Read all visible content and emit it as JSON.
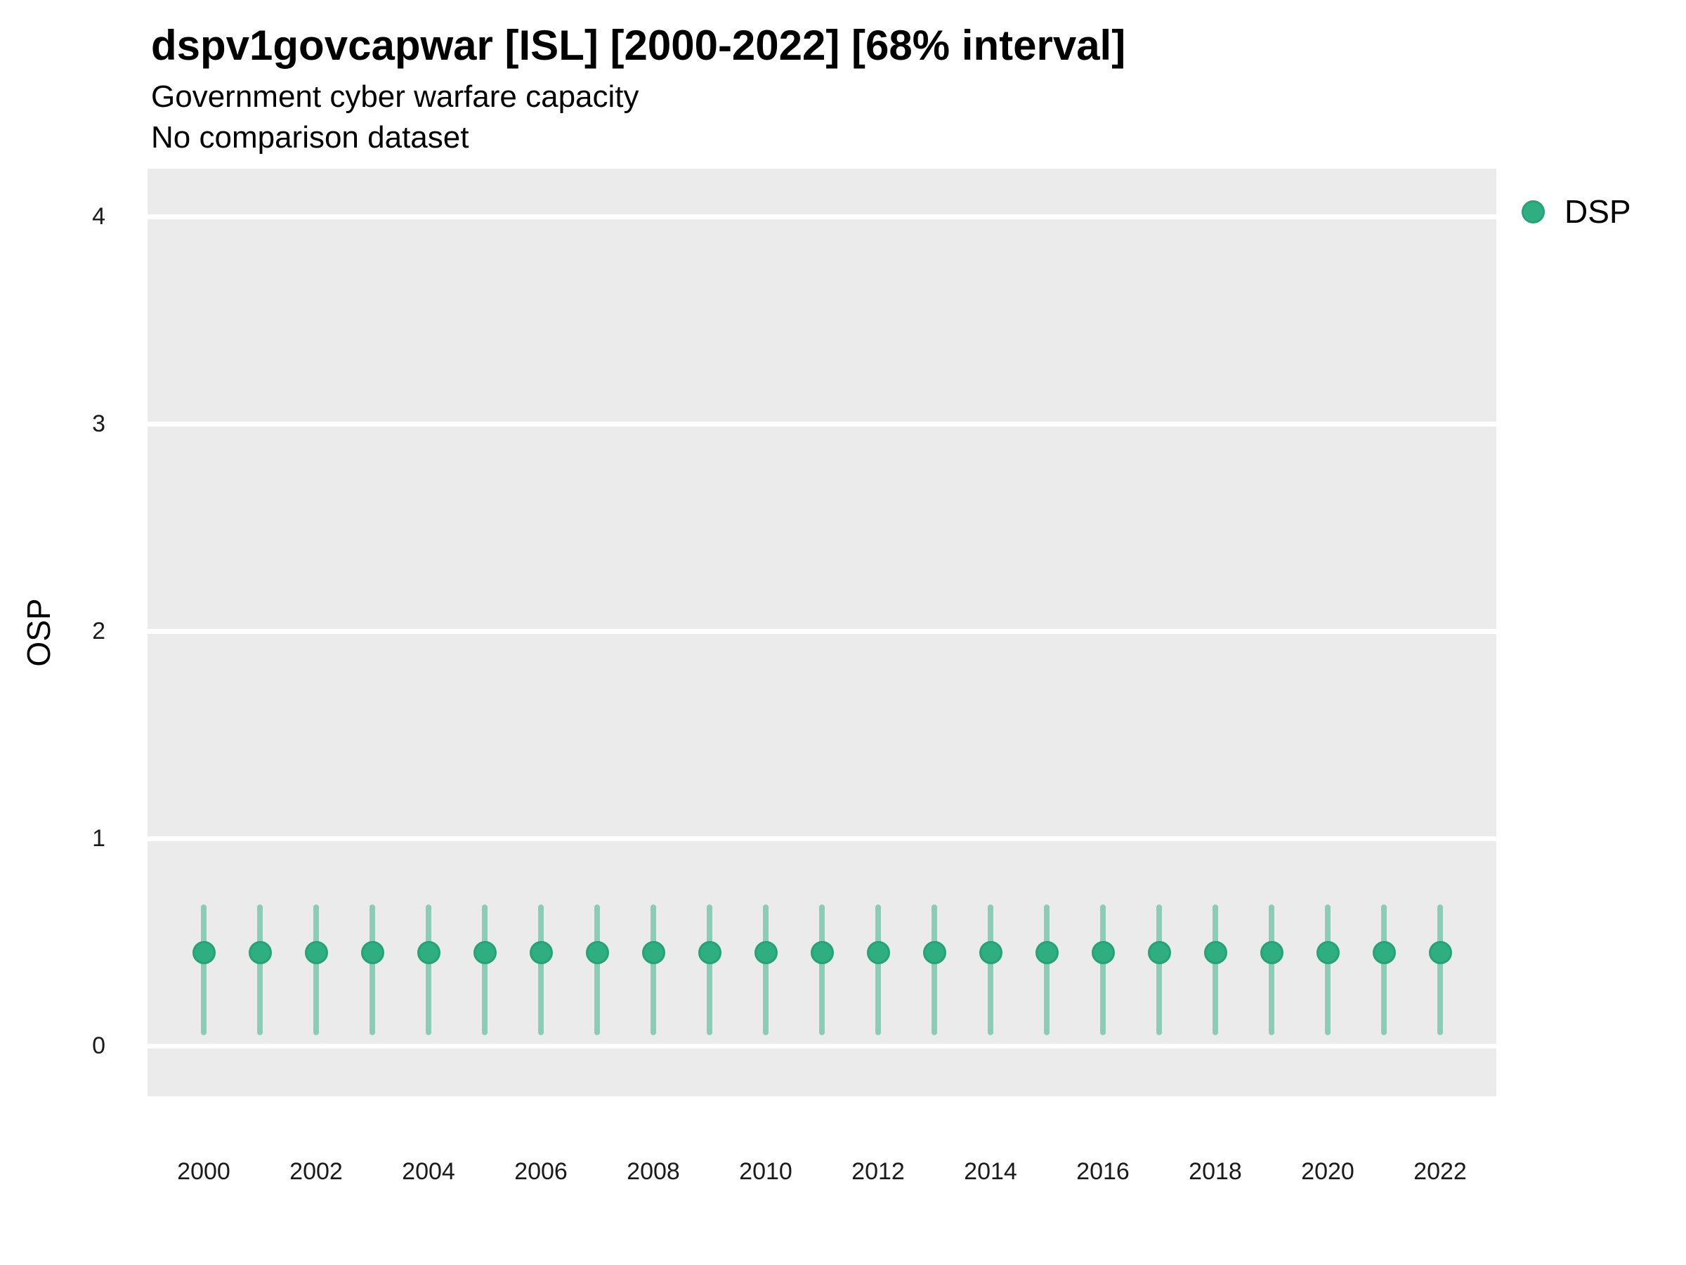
{
  "header": {
    "title": "dspv1govcapwar [ISL] [2000-2022] [68% interval]",
    "subtitle": "Government cyber warfare capacity",
    "note": "No comparison dataset"
  },
  "y_axis": {
    "title": "OSP"
  },
  "legend": {
    "label": "DSP"
  },
  "colors": {
    "point_fill": "#2FAE82",
    "point_stroke": "#25A276",
    "errorbar": "rgba(46,172,128,0.5)",
    "panel_bg": "#EBEBEB",
    "gridline": "#FFFFFF",
    "tick_text": "#1a1a1a",
    "title_text": "#000000"
  },
  "chart_data": {
    "type": "scatter",
    "title": "dspv1govcapwar [ISL] [2000-2022] [68% interval]",
    "subtitle": "Government cyber warfare capacity",
    "note": "No comparison dataset",
    "xlabel": "",
    "ylabel": "OSP",
    "interval": "68%",
    "legend_position": "right",
    "grid": "horizontal-major-only",
    "x": [
      2000,
      2001,
      2002,
      2003,
      2004,
      2005,
      2006,
      2007,
      2008,
      2009,
      2010,
      2011,
      2012,
      2013,
      2014,
      2015,
      2016,
      2017,
      2018,
      2019,
      2020,
      2021,
      2022
    ],
    "series": [
      {
        "name": "DSP",
        "values": [
          0.45,
          0.45,
          0.45,
          0.45,
          0.45,
          0.45,
          0.45,
          0.45,
          0.45,
          0.45,
          0.45,
          0.45,
          0.45,
          0.45,
          0.45,
          0.45,
          0.45,
          0.45,
          0.45,
          0.45,
          0.45,
          0.45,
          0.45
        ],
        "interval_low": [
          0.05,
          0.05,
          0.05,
          0.05,
          0.05,
          0.05,
          0.05,
          0.05,
          0.05,
          0.05,
          0.05,
          0.05,
          0.05,
          0.05,
          0.05,
          0.05,
          0.05,
          0.05,
          0.05,
          0.05,
          0.05,
          0.05,
          0.05
        ],
        "interval_high": [
          0.68,
          0.68,
          0.68,
          0.68,
          0.68,
          0.68,
          0.68,
          0.68,
          0.68,
          0.68,
          0.68,
          0.68,
          0.68,
          0.68,
          0.68,
          0.68,
          0.68,
          0.68,
          0.68,
          0.68,
          0.68,
          0.68,
          0.68
        ]
      }
    ],
    "ylim": [
      -0.24,
      4.23
    ],
    "yticks": [
      0,
      1,
      2,
      3,
      4
    ],
    "xticks": [
      2000,
      2002,
      2004,
      2006,
      2008,
      2010,
      2012,
      2014,
      2016,
      2018,
      2020,
      2022
    ]
  }
}
